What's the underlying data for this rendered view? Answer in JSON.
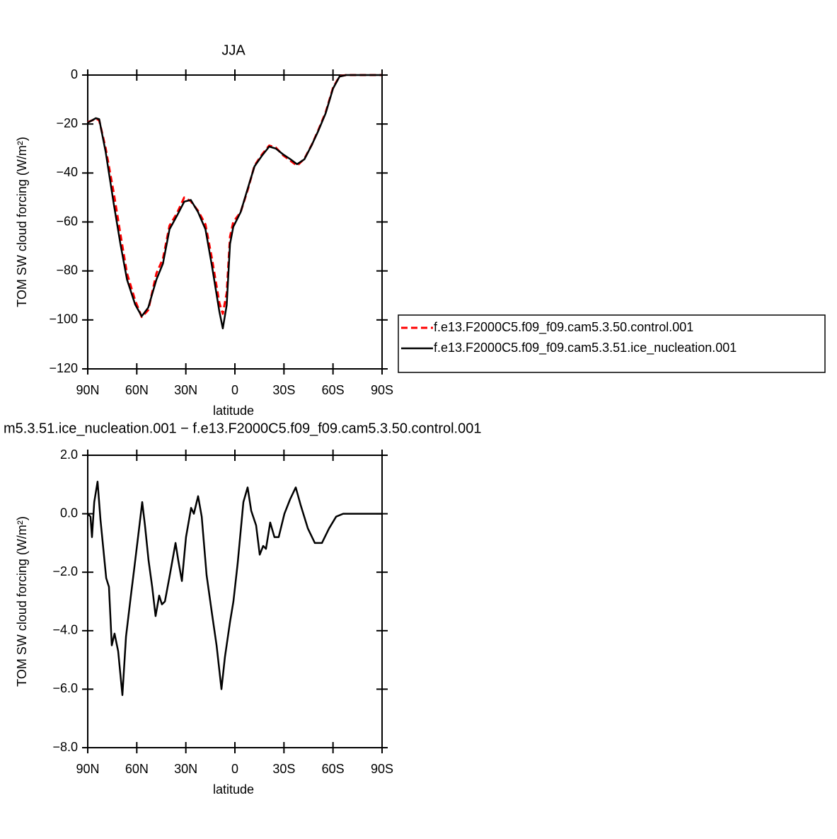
{
  "chart_data": [
    {
      "type": "line",
      "title": "JJA",
      "xlabel": "latitude",
      "ylabel": "TOM SW cloud forcing (W/m²)",
      "x": [
        90,
        85,
        83,
        79,
        74,
        70,
        66,
        61,
        57,
        53,
        48,
        44,
        40,
        35.5,
        31,
        27,
        22.5,
        18,
        14,
        9.5,
        7.4,
        5,
        3,
        1,
        -3.5,
        -8,
        -12,
        -16.5,
        -21,
        -25,
        -29.5,
        -34,
        -38,
        -42.5,
        -47,
        -51,
        -55.5,
        -60,
        -64,
        -68,
        -90
      ],
      "series": [
        {
          "name": "f.e13.F2000C5.f09_f09.cam5.3.50.control.001",
          "color": "#ff0000",
          "dash": true,
          "values": [
            -19.3,
            -17.8,
            -18.5,
            -30,
            -48.5,
            -65,
            -81,
            -92,
            -98.8,
            -96,
            -81,
            -75,
            -61.5,
            -56.5,
            -50,
            -51.5,
            -55.5,
            -61,
            -75,
            -93,
            -97.5,
            -89,
            -66,
            -60,
            -56,
            -46.5,
            -37,
            -32.5,
            -28.8,
            -29.6,
            -32.8,
            -35,
            -37,
            -34.2,
            -28.5,
            -22.5,
            -15.2,
            -5.2,
            -0.5,
            0,
            0
          ]
        },
        {
          "name": "f.e13.F2000C5.f09_f09.cam5.3.51.ice_nucleation.001",
          "color": "#000000",
          "dash": false,
          "values": [
            -19.5,
            -17.6,
            -18,
            -31.5,
            -53,
            -69,
            -83.5,
            -93.7,
            -98.5,
            -95,
            -83.5,
            -77,
            -63,
            -57.5,
            -51.7,
            -51,
            -56,
            -63,
            -78,
            -96.5,
            -103.5,
            -94,
            -69,
            -62,
            -56,
            -46,
            -37.3,
            -33,
            -29.2,
            -30,
            -32.4,
            -34.4,
            -36.4,
            -34.4,
            -28.6,
            -22.8,
            -15.6,
            -5.5,
            -0.6,
            0,
            0
          ]
        }
      ],
      "xlim": [
        90,
        -90
      ],
      "xticks": [
        {
          "value": 90,
          "label": "90N"
        },
        {
          "value": 60,
          "label": "60N"
        },
        {
          "value": 30,
          "label": "30N"
        },
        0,
        {
          "value": -30,
          "label": "30S"
        },
        {
          "value": -60,
          "label": "60S"
        },
        {
          "value": -90,
          "label": "90S"
        }
      ],
      "ylim": [
        -120,
        0
      ],
      "yticks": [
        {
          "value": -120,
          "label": "−120"
        },
        {
          "value": -100,
          "label": "−100"
        },
        {
          "value": -80,
          "label": "−80"
        },
        {
          "value": -60,
          "label": "−60"
        },
        {
          "value": -40,
          "label": "−40"
        },
        {
          "value": -20,
          "label": "−20"
        },
        0
      ],
      "legend": "right"
    },
    {
      "type": "line",
      "title": "m5.3.51.ice_nucleation.001 − f.e13.F2000C5.f09_f09.cam5.3.50.control.001",
      "xlabel": "latitude",
      "ylabel": "TOM SW cloud forcing (W/m²)",
      "x": [
        90,
        88.3,
        87.4,
        86,
        84,
        82.2,
        78.7,
        77,
        75.3,
        73.6,
        71.4,
        68.8,
        66.6,
        63.6,
        61.4,
        58.8,
        56.7,
        55,
        52.8,
        50.6,
        48.5,
        46.3,
        44.6,
        42.8,
        39.8,
        36.3,
        34.6,
        32.4,
        29.9,
        26.8,
        25.1,
        22.5,
        20.3,
        17.3,
        13.8,
        11.2,
        8.2,
        6.1,
        3,
        0.9,
        -1.7,
        -5.2,
        -7.8,
        -10,
        -13,
        -15.2,
        -17.3,
        -19,
        -21.6,
        -24.2,
        -26.8,
        -30.3,
        -33.8,
        -37.2,
        -40.2,
        -44.6,
        -48.9,
        -53.2,
        -57.6,
        -61.9,
        -66.2,
        -90
      ],
      "values": [
        0,
        -0.1,
        -0.8,
        0.4,
        1.1,
        -0.2,
        -2.2,
        -2.5,
        -4.5,
        -4.1,
        -4.7,
        -6.2,
        -4.2,
        -2.8,
        -1.8,
        -0.6,
        0.4,
        -0.4,
        -1.6,
        -2.5,
        -3.5,
        -2.8,
        -3.1,
        -3,
        -2.1,
        -1,
        -1.6,
        -2.3,
        -0.8,
        0.2,
        0,
        0.6,
        -0.1,
        -2.1,
        -3.5,
        -4.5,
        -6,
        -4.9,
        -3.7,
        -3,
        -1.7,
        0.4,
        0.9,
        0.1,
        -0.4,
        -1.4,
        -1.1,
        -1.2,
        -0.3,
        -0.8,
        -0.8,
        0,
        0.5,
        0.9,
        0.3,
        -0.5,
        -1,
        -1,
        -0.5,
        -0.1,
        0,
        0
      ],
      "color": "#000000",
      "xlim": [
        90,
        -90
      ],
      "xticks": [
        {
          "value": 90,
          "label": "90N"
        },
        {
          "value": 60,
          "label": "60N"
        },
        {
          "value": 30,
          "label": "30N"
        },
        0,
        {
          "value": -30,
          "label": "30S"
        },
        {
          "value": -60,
          "label": "60S"
        },
        {
          "value": -90,
          "label": "90S"
        }
      ],
      "ylim": [
        -8,
        2
      ],
      "yticks": [
        {
          "value": -8,
          "label": "−8.0"
        },
        {
          "value": -6,
          "label": "−6.0"
        },
        {
          "value": -4,
          "label": "−4.0"
        },
        {
          "value": -2,
          "label": "−2.0"
        },
        {
          "value": 0,
          "label": "0.0"
        },
        {
          "value": 2,
          "label": "2.0"
        }
      ]
    }
  ]
}
